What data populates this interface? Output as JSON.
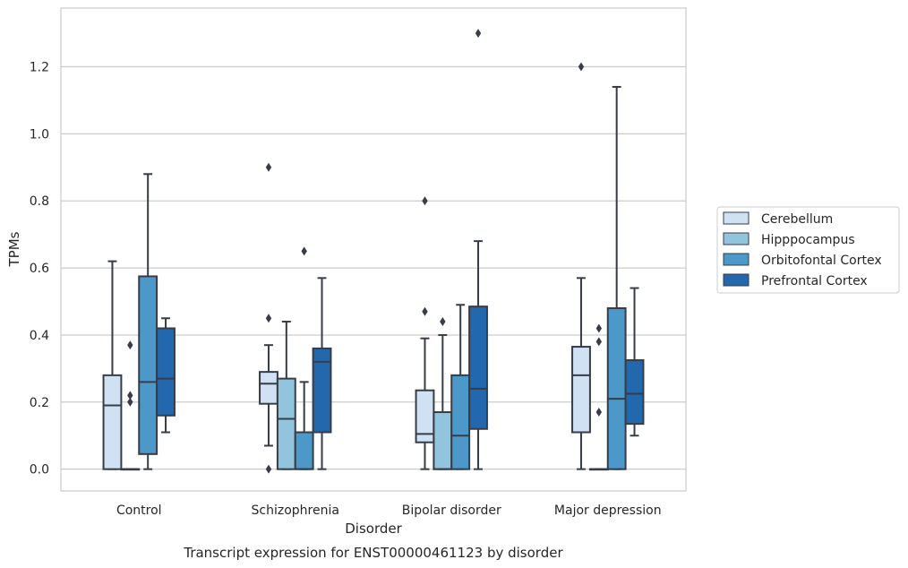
{
  "chart_data": {
    "type": "box",
    "xlabel": "Disorder",
    "ylabel": "TPMs",
    "caption": "Transcript expression for ENST00000461123 by disorder",
    "ylim": [
      -0.065,
      1.375
    ],
    "yticks": [
      "0.0",
      "0.2",
      "0.4",
      "0.6",
      "0.8",
      "1.0",
      "1.2"
    ],
    "grid": "y",
    "legend_position": "right",
    "categories": [
      "Control",
      "Schizophrenia",
      "Bipolar disorder",
      "Major depression"
    ],
    "series": [
      {
        "name": "Cerebellum",
        "color": "#cfe1f2",
        "boxes": [
          {
            "whislo": 0.0,
            "q1": 0.0,
            "med": 0.19,
            "q3": 0.28,
            "whishi": 0.62,
            "fliers": []
          },
          {
            "whislo": 0.07,
            "q1": 0.195,
            "med": 0.255,
            "q3": 0.29,
            "whishi": 0.37,
            "fliers": [
              0.0,
              0.45,
              0.9
            ]
          },
          {
            "whislo": 0.0,
            "q1": 0.08,
            "med": 0.105,
            "q3": 0.235,
            "whishi": 0.39,
            "fliers": [
              0.47,
              0.8
            ]
          },
          {
            "whislo": 0.0,
            "q1": 0.11,
            "med": 0.28,
            "q3": 0.365,
            "whishi": 0.57,
            "fliers": [
              1.2
            ]
          }
        ]
      },
      {
        "name": "Hipppocampus",
        "color": "#93c4de",
        "boxes": [
          {
            "whislo": 0.0,
            "q1": 0.0,
            "med": 0.0,
            "q3": 0.0,
            "whishi": 0.0,
            "fliers": [
              0.2,
              0.22,
              0.37
            ]
          },
          {
            "whislo": 0.0,
            "q1": 0.0,
            "med": 0.15,
            "q3": 0.27,
            "whishi": 0.44,
            "fliers": []
          },
          {
            "whislo": 0.0,
            "q1": 0.0,
            "med": 0.0,
            "q3": 0.17,
            "whishi": 0.4,
            "fliers": [
              0.44
            ]
          },
          {
            "whislo": 0.0,
            "q1": 0.0,
            "med": 0.0,
            "q3": 0.0,
            "whishi": 0.0,
            "fliers": [
              0.17,
              0.38,
              0.42
            ]
          }
        ]
      },
      {
        "name": "Orbitofontal Cortex",
        "color": "#4b98c9",
        "boxes": [
          {
            "whislo": 0.0,
            "q1": 0.045,
            "med": 0.26,
            "q3": 0.575,
            "whishi": 0.88,
            "fliers": []
          },
          {
            "whislo": 0.0,
            "q1": 0.0,
            "med": 0.0,
            "q3": 0.11,
            "whishi": 0.26,
            "fliers": [
              0.65
            ]
          },
          {
            "whislo": 0.0,
            "q1": 0.0,
            "med": 0.1,
            "q3": 0.28,
            "whishi": 0.49,
            "fliers": []
          },
          {
            "whislo": 0.0,
            "q1": 0.0,
            "med": 0.21,
            "q3": 0.48,
            "whishi": 1.14,
            "fliers": []
          }
        ]
      },
      {
        "name": "Prefrontal Cortex",
        "color": "#2367ad",
        "boxes": [
          {
            "whislo": 0.11,
            "q1": 0.16,
            "med": 0.27,
            "q3": 0.42,
            "whishi": 0.45,
            "fliers": []
          },
          {
            "whislo": 0.0,
            "q1": 0.11,
            "med": 0.32,
            "q3": 0.36,
            "whishi": 0.57,
            "fliers": []
          },
          {
            "whislo": 0.0,
            "q1": 0.12,
            "med": 0.24,
            "q3": 0.485,
            "whishi": 0.68,
            "fliers": [
              1.3
            ]
          },
          {
            "whislo": 0.1,
            "q1": 0.135,
            "med": 0.225,
            "q3": 0.325,
            "whishi": 0.54,
            "fliers": []
          }
        ]
      }
    ]
  }
}
